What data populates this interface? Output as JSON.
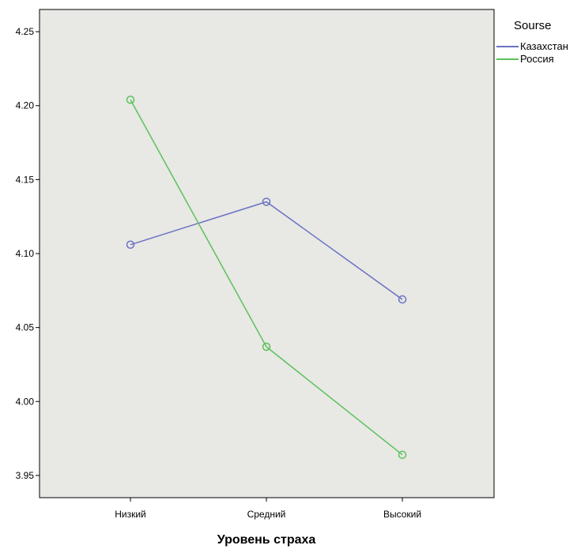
{
  "chart_data": {
    "type": "line",
    "xlabel": "Уровень страха",
    "ylabel": "",
    "categories": [
      "Низкий",
      "Средний",
      "Высокий"
    ],
    "ylim": [
      3.935,
      4.265
    ],
    "yticks": [
      "3.95",
      "4.00",
      "4.05",
      "4.10",
      "4.15",
      "4.20",
      "4.25"
    ],
    "grid": false,
    "legend_position": "top-right, outside plot",
    "legend_title": "Sourse",
    "plot_background": "#e8e8e4",
    "series": [
      {
        "name": "Казахстан",
        "color": "#6a72c4",
        "values": [
          4.106,
          4.135,
          4.069
        ]
      },
      {
        "name": "Россия",
        "color": "#5bc25b",
        "values": [
          4.204,
          4.037,
          3.964
        ]
      }
    ]
  }
}
